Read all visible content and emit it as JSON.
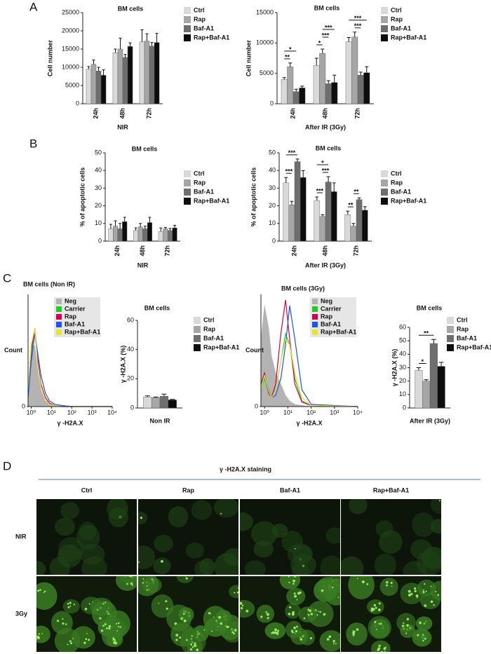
{
  "panel_labels": [
    "A",
    "B",
    "C",
    "D"
  ],
  "chart_data": [
    {
      "type": "bar",
      "title": "BM cells",
      "ylabel": "Cell number",
      "xlabel": "NIR",
      "categories": [
        "24h",
        "48h",
        "72h"
      ],
      "ylim": [
        0,
        25000
      ],
      "yticks": [
        0,
        5000,
        10000,
        15000,
        20000,
        25000
      ],
      "series": [
        {
          "name": "Ctrl",
          "color": "#d9d9d9",
          "values": [
            9500,
            14000,
            17000
          ],
          "errors": [
            700,
            1000,
            3300
          ]
        },
        {
          "name": "Rap",
          "color": "#a6a6a6",
          "values": [
            10800,
            15000,
            17200
          ],
          "errors": [
            1200,
            3000,
            2000
          ]
        },
        {
          "name": "Baf-A1",
          "color": "#6e6e6e",
          "values": [
            9000,
            12700,
            15800
          ],
          "errors": [
            1000,
            800,
            1000
          ]
        },
        {
          "name": "Rap+Baf-A1",
          "color": "#0d0d0d",
          "values": [
            7800,
            15700,
            16800
          ],
          "errors": [
            1500,
            1000,
            2500
          ]
        }
      ]
    },
    {
      "type": "bar",
      "title": "BM cells",
      "ylabel": "Cell number",
      "xlabel": "After IR (3Gy)",
      "categories": [
        "24h",
        "48h",
        "72h"
      ],
      "ylim": [
        0,
        15000
      ],
      "yticks": [
        0,
        5000,
        10000,
        15000
      ],
      "series": [
        {
          "name": "Ctrl",
          "color": "#d9d9d9",
          "values": [
            4000,
            6300,
            10200
          ],
          "errors": [
            300,
            1200,
            700
          ]
        },
        {
          "name": "Rap",
          "color": "#a6a6a6",
          "values": [
            6100,
            8300,
            11000
          ],
          "errors": [
            600,
            700,
            800
          ]
        },
        {
          "name": "Baf-A1",
          "color": "#6e6e6e",
          "values": [
            2000,
            3300,
            4700
          ],
          "errors": [
            400,
            500,
            500
          ]
        },
        {
          "name": "Rap+Baf-A1",
          "color": "#0d0d0d",
          "values": [
            2600,
            3500,
            5100
          ],
          "errors": [
            300,
            1200,
            1000
          ]
        }
      ],
      "annotations": [
        {
          "text": "**",
          "category": "24h",
          "from": "Ctrl",
          "to": "Rap"
        },
        {
          "text": "*",
          "category": "24h",
          "from": "Ctrl",
          "to": "Baf-A1"
        },
        {
          "text": "*",
          "category": "48h",
          "from": "Ctrl",
          "to": "Rap"
        },
        {
          "text": "***",
          "category": "48h",
          "from": "Rap",
          "to": "Baf-A1"
        },
        {
          "text": "***",
          "category": "48h",
          "from": "Rap",
          "to": "Rap+Baf-A1"
        },
        {
          "text": "***",
          "category": "72h",
          "from": "Rap",
          "to": "Baf-A1"
        },
        {
          "text": "***",
          "category": "72h",
          "from": "Ctrl",
          "to": "Rap+Baf-A1"
        }
      ]
    },
    {
      "type": "bar",
      "title": "BM cells",
      "ylabel": "% of apoptotic cells",
      "xlabel": "NIR",
      "categories": [
        "24h",
        "48h",
        "72h"
      ],
      "ylim": [
        0,
        50
      ],
      "yticks": [
        0,
        10,
        20,
        30,
        40,
        50
      ],
      "series": [
        {
          "name": "Ctrl",
          "color": "#d9d9d9",
          "values": [
            7,
            6,
            5.5
          ],
          "errors": [
            2.5,
            1.5,
            2
          ]
        },
        {
          "name": "Rap",
          "color": "#a6a6a6",
          "values": [
            8.5,
            8,
            7
          ],
          "errors": [
            3,
            2,
            0.8
          ]
        },
        {
          "name": "Baf-A1",
          "color": "#6e6e6e",
          "values": [
            7,
            7,
            6
          ],
          "errors": [
            3,
            1.5,
            1.2
          ]
        },
        {
          "name": "Rap+Baf-A1",
          "color": "#0d0d0d",
          "values": [
            11,
            10.5,
            7.5
          ],
          "errors": [
            2.5,
            3,
            1.5
          ]
        }
      ]
    },
    {
      "type": "bar",
      "title": "BM cells",
      "ylabel": "% of apoptotic cells",
      "xlabel": "After IR (3Gy)",
      "categories": [
        "24h",
        "48h",
        "72h"
      ],
      "ylim": [
        0,
        50
      ],
      "yticks": [
        0,
        10,
        20,
        30,
        40,
        50
      ],
      "series": [
        {
          "name": "Ctrl",
          "color": "#d9d9d9",
          "values": [
            33,
            23,
            15
          ],
          "errors": [
            3,
            2,
            2
          ]
        },
        {
          "name": "Rap",
          "color": "#a6a6a6",
          "values": [
            20.5,
            14,
            8.5
          ],
          "errors": [
            2,
            1,
            1.5
          ]
        },
        {
          "name": "Baf-A1",
          "color": "#6e6e6e",
          "values": [
            45,
            33.5,
            23.5
          ],
          "errors": [
            1.5,
            3,
            1
          ]
        },
        {
          "name": "Rap+Baf-A1",
          "color": "#0d0d0d",
          "values": [
            36,
            28,
            17.5
          ],
          "errors": [
            4,
            5,
            2
          ]
        }
      ],
      "annotations": [
        {
          "text": "***",
          "category": "24h",
          "from": "Ctrl",
          "to": "Rap"
        },
        {
          "text": "***",
          "category": "24h",
          "from": "Ctrl",
          "to": "Baf-A1"
        },
        {
          "text": "***",
          "category": "48h",
          "from": "Ctrl",
          "to": "Rap"
        },
        {
          "text": "***",
          "category": "48h",
          "from": "Rap",
          "to": "Baf-A1"
        },
        {
          "text": "*",
          "category": "48h",
          "from": "Ctrl",
          "to": "Baf-A1"
        },
        {
          "text": "**",
          "category": "72h",
          "from": "Ctrl",
          "to": "Rap"
        },
        {
          "text": "**",
          "category": "72h",
          "from": "Rap",
          "to": "Baf-A1"
        }
      ]
    },
    {
      "type": "line",
      "title": "BM cells (Non IR)",
      "ylabel": "Count",
      "xlabel": "γ -H2A.X",
      "xscale": "log",
      "xlim": [
        0.7,
        10000
      ],
      "xticks": [
        {
          "value": 1,
          "label": "10⁰"
        },
        {
          "value": 10,
          "label": "10¹"
        },
        {
          "value": 100,
          "label": "10²"
        },
        {
          "value": 1000,
          "label": "10³"
        },
        {
          "value": 10000,
          "label": "10⁴"
        }
      ],
      "ylim": [
        0,
        100
      ],
      "yticks": [
        0
      ],
      "x": [
        0.7,
        1,
        1.5,
        2,
        3,
        5,
        8,
        15,
        30,
        100,
        10000
      ],
      "series": [
        {
          "name": "Neg",
          "color": "#b3b3b3",
          "fill": true,
          "values": [
            20,
            50,
            55,
            35,
            15,
            5,
            2,
            1,
            0,
            0,
            0
          ]
        },
        {
          "name": "Carrier",
          "color": "#22cc22",
          "values": [
            10,
            45,
            65,
            45,
            20,
            8,
            3,
            1,
            0,
            0,
            0
          ]
        },
        {
          "name": "Rap",
          "color": "#d4004c",
          "values": [
            10,
            50,
            70,
            45,
            20,
            8,
            3,
            1,
            0,
            0,
            0
          ]
        },
        {
          "name": "Baf-A1",
          "color": "#1a53ff",
          "values": [
            8,
            40,
            65,
            50,
            28,
            12,
            5,
            2,
            1,
            0,
            0
          ]
        },
        {
          "name": "Rap+Baf-A1",
          "color": "#e6e62e",
          "values": [
            15,
            55,
            70,
            40,
            18,
            6,
            2,
            1,
            0,
            0,
            0
          ]
        }
      ]
    },
    {
      "type": "bar",
      "title": "BM cells",
      "ylabel": "γ -H2A.X (%)",
      "xlabel": "Non IR",
      "categories": [
        null
      ],
      "ylim": [
        0,
        60
      ],
      "yticks": [
        0,
        20,
        40,
        60
      ],
      "series": [
        {
          "name": "Ctrl",
          "color": "#d9d9d9",
          "values": [
            7.5
          ],
          "errors": [
            0.8
          ]
        },
        {
          "name": "Rap",
          "color": "#a6a6a6",
          "values": [
            7
          ],
          "errors": [
            0.5
          ]
        },
        {
          "name": "Baf-A1",
          "color": "#6e6e6e",
          "values": [
            8
          ],
          "errors": [
            1.5
          ]
        },
        {
          "name": "Rap+Baf-A1",
          "color": "#0d0d0d",
          "values": [
            5.5
          ],
          "errors": [
            0.4
          ]
        }
      ]
    },
    {
      "type": "line",
      "title": "BM cells (3Gy)",
      "ylabel": "Count",
      "xlabel": "γ -H2A.X",
      "xscale": "log",
      "xlim": [
        0.7,
        10000
      ],
      "xticks": [
        {
          "value": 1,
          "label": "10⁰"
        },
        {
          "value": 10,
          "label": "10¹"
        },
        {
          "value": 100,
          "label": "10²"
        },
        {
          "value": 1000,
          "label": "10³"
        },
        {
          "value": 10000,
          "label": "10⁴"
        }
      ],
      "ylim": [
        0,
        100
      ],
      "yticks": [
        0
      ],
      "x": [
        0.7,
        1,
        1.5,
        2,
        3,
        5,
        8,
        12,
        20,
        40,
        100,
        10000
      ],
      "series": [
        {
          "name": "Neg",
          "color": "#b3b3b3",
          "fill": true,
          "values": [
            60,
            90,
            70,
            45,
            30,
            20,
            10,
            5,
            2,
            1,
            0,
            0
          ]
        },
        {
          "name": "Carrier",
          "color": "#22cc22",
          "values": [
            15,
            25,
            12,
            8,
            15,
            40,
            65,
            55,
            25,
            5,
            1,
            0
          ]
        },
        {
          "name": "Rap",
          "color": "#d4004c",
          "values": [
            20,
            30,
            12,
            8,
            20,
            65,
            95,
            60,
            20,
            4,
            1,
            0
          ]
        },
        {
          "name": "Baf-A1",
          "color": "#1a53ff",
          "values": [
            15,
            28,
            15,
            8,
            10,
            25,
            55,
            90,
            60,
            15,
            2,
            0
          ]
        },
        {
          "name": "Rap+Baf-A1",
          "color": "#e6e62e",
          "values": [
            15,
            28,
            14,
            8,
            14,
            40,
            60,
            55,
            30,
            8,
            1,
            0
          ]
        }
      ]
    },
    {
      "type": "bar",
      "title": "BM cells",
      "ylabel": "γ -H2A.X (%)",
      "xlabel": "After IR (3Gy)",
      "categories": [
        null
      ],
      "ylim": [
        0,
        60
      ],
      "yticks": [
        0,
        10,
        20,
        30,
        40,
        50,
        60
      ],
      "series": [
        {
          "name": "Ctrl",
          "color": "#d9d9d9",
          "values": [
            28
          ],
          "errors": [
            2
          ]
        },
        {
          "name": "Rap",
          "color": "#a6a6a6",
          "values": [
            20
          ],
          "errors": [
            1
          ]
        },
        {
          "name": "Baf-A1",
          "color": "#6e6e6e",
          "values": [
            48
          ],
          "errors": [
            3
          ]
        },
        {
          "name": "Rap+Baf-A1",
          "color": "#0d0d0d",
          "values": [
            31
          ],
          "errors": [
            3
          ]
        }
      ],
      "annotations": [
        {
          "text": "*",
          "from": "Ctrl",
          "to": "Rap"
        },
        {
          "text": "**",
          "from": "Ctrl",
          "to": "Baf-A1"
        }
      ]
    }
  ],
  "staining": {
    "title": "γ -H2A.X staining",
    "columns": [
      "Ctrl",
      "Rap",
      "Baf-A1",
      "Rap+Baf-A1"
    ],
    "rows": [
      "NIR",
      "3Gy"
    ]
  }
}
